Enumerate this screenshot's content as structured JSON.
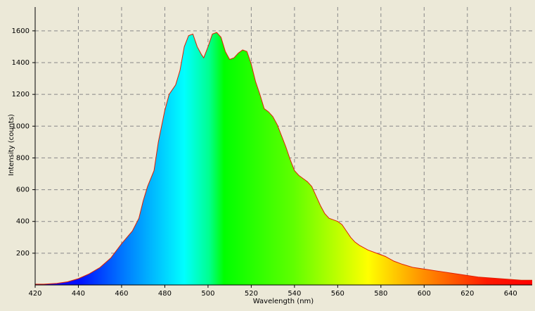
{
  "chart_data": {
    "type": "area",
    "x_label": "Wavelength (nm)",
    "y_label": "Intensity (counts)",
    "x": [
      420,
      424,
      430,
      435,
      440,
      445,
      450,
      455,
      460,
      465,
      468,
      470,
      472,
      475,
      477,
      480,
      482,
      485,
      487,
      489,
      491,
      493,
      495,
      497,
      498,
      500,
      502,
      504,
      506,
      508,
      510,
      512,
      514,
      516,
      518,
      520,
      522,
      524,
      526,
      528,
      530,
      532,
      534,
      536,
      538,
      540,
      542,
      544,
      546,
      548,
      550,
      552,
      554,
      556,
      558,
      560,
      562,
      564,
      566,
      568,
      570,
      574,
      578,
      582,
      586,
      590,
      595,
      600,
      605,
      610,
      615,
      620,
      625,
      630,
      635,
      640,
      645,
      650
    ],
    "series": [
      {
        "color": "#e02000",
        "values": [
          5,
          5,
          10,
          20,
          40,
          70,
          110,
          170,
          260,
          340,
          420,
          530,
          620,
          720,
          900,
          1100,
          1200,
          1260,
          1350,
          1500,
          1570,
          1580,
          1500,
          1450,
          1430,
          1500,
          1580,
          1590,
          1560,
          1470,
          1420,
          1430,
          1460,
          1480,
          1470,
          1390,
          1280,
          1200,
          1110,
          1090,
          1060,
          1010,
          940,
          870,
          790,
          720,
          690,
          670,
          650,
          620,
          560,
          500,
          450,
          420,
          410,
          400,
          380,
          340,
          300,
          270,
          250,
          220,
          200,
          180,
          150,
          130,
          110,
          100,
          90,
          80,
          70,
          60,
          50,
          45,
          40,
          35,
          30,
          30
        ]
      }
    ],
    "xlim": [
      420,
      650
    ],
    "ylim": [
      0,
      1750
    ],
    "xticks": [
      420,
      440,
      460,
      480,
      500,
      520,
      540,
      560,
      580,
      600,
      620,
      640
    ],
    "yticks": [
      200,
      400,
      600,
      800,
      1000,
      1200,
      1400,
      1600
    ],
    "grid": true
  }
}
